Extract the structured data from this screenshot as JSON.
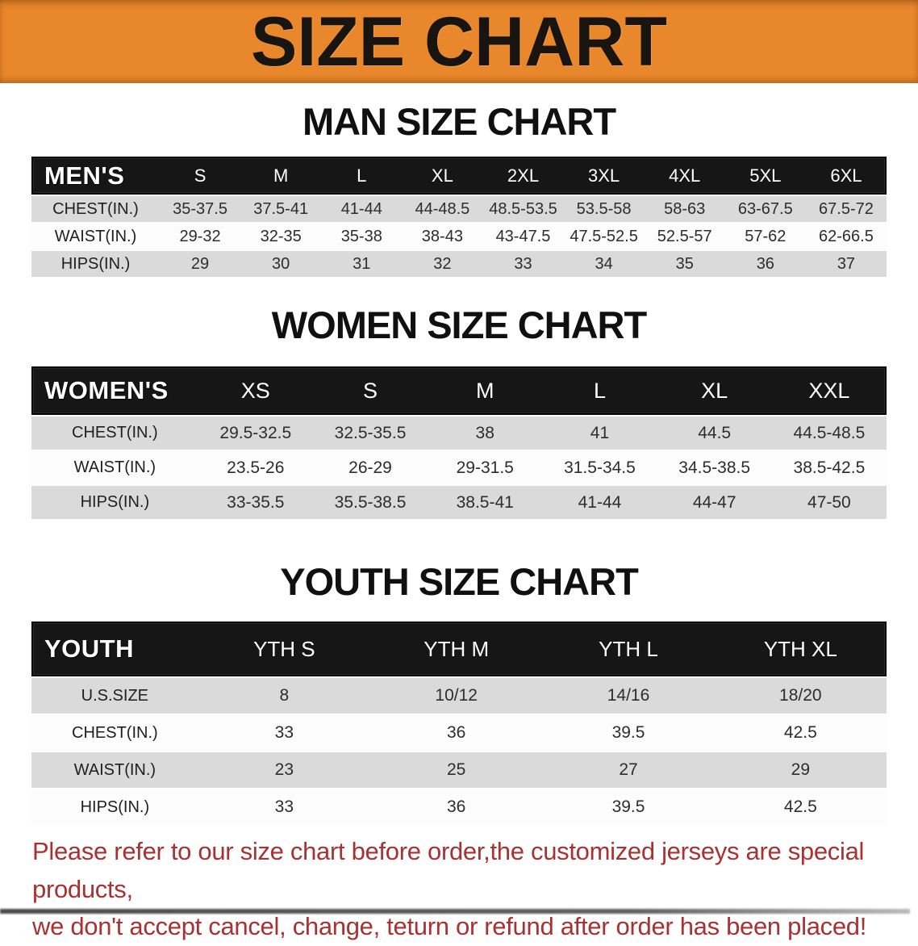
{
  "banner": {
    "title": "SIZE CHART",
    "bg_color": "#E8872B",
    "text_color": "#181410"
  },
  "sections": [
    {
      "title": "MAN SIZE CHART",
      "group_label": "MEN'S",
      "sizes": [
        "S",
        "M",
        "L",
        "XL",
        "2XL",
        "3XL",
        "4XL",
        "5XL",
        "6XL"
      ],
      "rows": [
        {
          "label": "CHEST(IN.)",
          "values": [
            "35-37.5",
            "37.5-41",
            "41-44",
            "44-48.5",
            "48.5-53.5",
            "53.5-58",
            "58-63",
            "63-67.5",
            "67.5-72"
          ]
        },
        {
          "label": "WAIST(IN.)",
          "values": [
            "29-32",
            "32-35",
            "35-38",
            "38-43",
            "43-47.5",
            "47.5-52.5",
            "52.5-57",
            "57-62",
            "62-66.5"
          ]
        },
        {
          "label": "HIPS(IN.)",
          "values": [
            "29",
            "30",
            "31",
            "32",
            "33",
            "34",
            "35",
            "36",
            "37"
          ]
        }
      ]
    },
    {
      "title": "WOMEN SIZE CHART",
      "group_label": "WOMEN'S",
      "sizes": [
        "XS",
        "S",
        "M",
        "L",
        "XL",
        "XXL"
      ],
      "rows": [
        {
          "label": "CHEST(IN.)",
          "values": [
            "29.5-32.5",
            "32.5-35.5",
            "38",
            "41",
            "44.5",
            "44.5-48.5"
          ]
        },
        {
          "label": "WAIST(IN.)",
          "values": [
            "23.5-26",
            "26-29",
            "29-31.5",
            "31.5-34.5",
            "34.5-38.5",
            "38.5-42.5"
          ]
        },
        {
          "label": "HIPS(IN.)",
          "values": [
            "33-35.5",
            "35.5-38.5",
            "38.5-41",
            "41-44",
            "44-47",
            "47-50"
          ]
        }
      ]
    },
    {
      "title": "YOUTH SIZE CHART",
      "group_label": "YOUTH",
      "sizes": [
        "YTH S",
        "YTH M",
        "YTH L",
        "YTH XL"
      ],
      "rows": [
        {
          "label": "U.S.SIZE",
          "values": [
            "8",
            "10/12",
            "14/16",
            "18/20"
          ]
        },
        {
          "label": "CHEST(IN.)",
          "values": [
            "33",
            "36",
            "39.5",
            "42.5"
          ]
        },
        {
          "label": "WAIST(IN.)",
          "values": [
            "23",
            "25",
            "27",
            "29"
          ]
        },
        {
          "label": "HIPS(IN.)",
          "values": [
            "33",
            "36",
            "39.5",
            "42.5"
          ]
        }
      ]
    }
  ],
  "footer": {
    "line1": "Please refer to our size chart before order,the customized jerseys are special products,",
    "line2": "we don't accept cancel, change, teturn or refund after order has been placed!",
    "text_color": "#A93131"
  }
}
